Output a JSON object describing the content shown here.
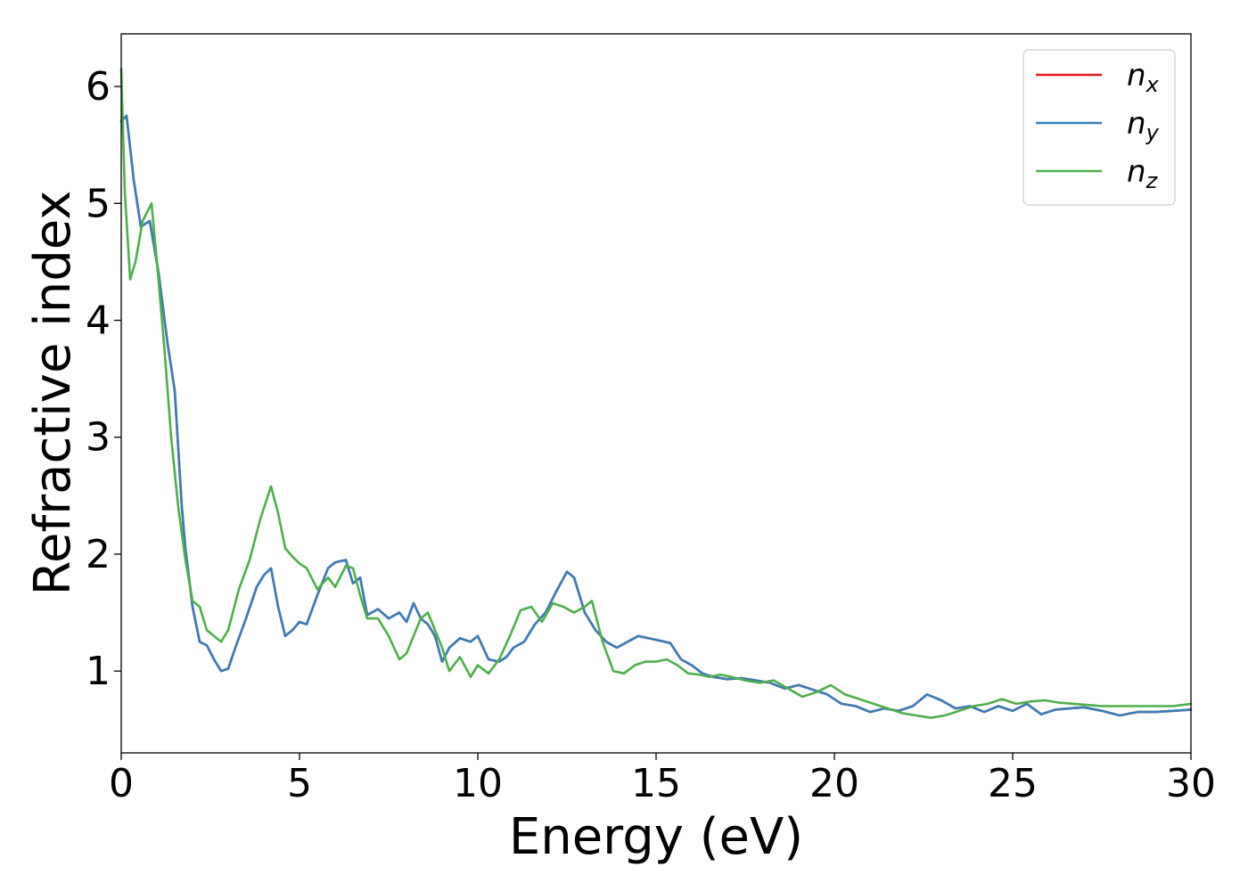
{
  "chart_data": {
    "type": "line",
    "xlabel": "Energy (eV)",
    "ylabel": "Refractive index",
    "xlim": [
      0,
      30
    ],
    "ylim": [
      0.3,
      6.45
    ],
    "xticks": [
      {
        "value": 0,
        "label": "0"
      },
      {
        "value": 5,
        "label": "5"
      },
      {
        "value": 10,
        "label": "10"
      },
      {
        "value": 15,
        "label": "15"
      },
      {
        "value": 20,
        "label": "20"
      },
      {
        "value": 25,
        "label": "25"
      },
      {
        "value": 30,
        "label": "30"
      }
    ],
    "yticks": [
      {
        "value": 1,
        "label": "1"
      },
      {
        "value": 2,
        "label": "2"
      },
      {
        "value": 3,
        "label": "3"
      },
      {
        "value": 4,
        "label": "4"
      },
      {
        "value": 5,
        "label": "5"
      },
      {
        "value": 6,
        "label": "6"
      }
    ],
    "grid": false,
    "legend_position": "top-right",
    "series": [
      {
        "key": "nx",
        "base": "n",
        "sub": "x",
        "color": "#e41a1c",
        "x": [
          0,
          0.15,
          0.35,
          0.55,
          0.8,
          1.05,
          1.3,
          1.5,
          1.6,
          1.7,
          1.8,
          1.9,
          2.0,
          2.2,
          2.4,
          2.6,
          2.8,
          3.0,
          3.2,
          3.5,
          3.8,
          4.0,
          4.2,
          4.4,
          4.6,
          4.8,
          5.0,
          5.2,
          5.5,
          5.8,
          6.0,
          6.3,
          6.5,
          6.7,
          6.9,
          7.2,
          7.5,
          7.8,
          8.0,
          8.2,
          8.4,
          8.6,
          8.8,
          9.0,
          9.2,
          9.5,
          9.8,
          10.0,
          10.3,
          10.6,
          10.8,
          11.0,
          11.3,
          11.6,
          11.9,
          12.2,
          12.5,
          12.7,
          13.0,
          13.3,
          13.6,
          13.9,
          14.2,
          14.5,
          14.8,
          15.1,
          15.4,
          15.7,
          16.0,
          16.3,
          16.6,
          17.0,
          17.4,
          17.8,
          18.2,
          18.6,
          19.0,
          19.4,
          19.8,
          20.2,
          20.6,
          21.0,
          21.4,
          21.8,
          22.2,
          22.6,
          23.0,
          23.4,
          23.8,
          24.2,
          24.6,
          25.0,
          25.4,
          25.8,
          26.2,
          26.6,
          27.0,
          27.5,
          28.0,
          28.5,
          29.0,
          29.5,
          30.0
        ],
        "y": [
          5.7,
          5.75,
          5.2,
          4.8,
          4.85,
          4.4,
          3.8,
          3.4,
          2.9,
          2.4,
          2.05,
          1.8,
          1.55,
          1.25,
          1.22,
          1.1,
          1.0,
          1.02,
          1.2,
          1.45,
          1.72,
          1.82,
          1.88,
          1.55,
          1.3,
          1.35,
          1.42,
          1.4,
          1.65,
          1.88,
          1.93,
          1.95,
          1.75,
          1.8,
          1.48,
          1.53,
          1.45,
          1.5,
          1.42,
          1.58,
          1.45,
          1.4,
          1.3,
          1.08,
          1.2,
          1.28,
          1.25,
          1.3,
          1.1,
          1.08,
          1.12,
          1.2,
          1.25,
          1.4,
          1.5,
          1.68,
          1.85,
          1.8,
          1.5,
          1.35,
          1.25,
          1.2,
          1.25,
          1.3,
          1.28,
          1.26,
          1.24,
          1.1,
          1.05,
          0.98,
          0.95,
          0.93,
          0.94,
          0.92,
          0.9,
          0.85,
          0.88,
          0.84,
          0.8,
          0.72,
          0.7,
          0.65,
          0.68,
          0.66,
          0.7,
          0.8,
          0.75,
          0.68,
          0.7,
          0.65,
          0.7,
          0.66,
          0.72,
          0.63,
          0.67,
          0.68,
          0.69,
          0.66,
          0.62,
          0.65,
          0.65,
          0.66,
          0.67
        ]
      },
      {
        "key": "ny",
        "base": "n",
        "sub": "y",
        "color": "#377eb8",
        "x": [
          0,
          0.15,
          0.35,
          0.55,
          0.8,
          1.05,
          1.3,
          1.5,
          1.6,
          1.7,
          1.8,
          1.9,
          2.0,
          2.2,
          2.4,
          2.6,
          2.8,
          3.0,
          3.2,
          3.5,
          3.8,
          4.0,
          4.2,
          4.4,
          4.6,
          4.8,
          5.0,
          5.2,
          5.5,
          5.8,
          6.0,
          6.3,
          6.5,
          6.7,
          6.9,
          7.2,
          7.5,
          7.8,
          8.0,
          8.2,
          8.4,
          8.6,
          8.8,
          9.0,
          9.2,
          9.5,
          9.8,
          10.0,
          10.3,
          10.6,
          10.8,
          11.0,
          11.3,
          11.6,
          11.9,
          12.2,
          12.5,
          12.7,
          13.0,
          13.3,
          13.6,
          13.9,
          14.2,
          14.5,
          14.8,
          15.1,
          15.4,
          15.7,
          16.0,
          16.3,
          16.6,
          17.0,
          17.4,
          17.8,
          18.2,
          18.6,
          19.0,
          19.4,
          19.8,
          20.2,
          20.6,
          21.0,
          21.4,
          21.8,
          22.2,
          22.6,
          23.0,
          23.4,
          23.8,
          24.2,
          24.6,
          25.0,
          25.4,
          25.8,
          26.2,
          26.6,
          27.0,
          27.5,
          28.0,
          28.5,
          29.0,
          29.5,
          30.0
        ],
        "y": [
          5.7,
          5.75,
          5.2,
          4.8,
          4.85,
          4.4,
          3.8,
          3.4,
          2.9,
          2.4,
          2.05,
          1.8,
          1.55,
          1.25,
          1.22,
          1.1,
          1.0,
          1.02,
          1.2,
          1.45,
          1.72,
          1.82,
          1.88,
          1.55,
          1.3,
          1.35,
          1.42,
          1.4,
          1.65,
          1.88,
          1.93,
          1.95,
          1.75,
          1.8,
          1.48,
          1.53,
          1.45,
          1.5,
          1.42,
          1.58,
          1.45,
          1.4,
          1.3,
          1.08,
          1.2,
          1.28,
          1.25,
          1.3,
          1.1,
          1.08,
          1.12,
          1.2,
          1.25,
          1.4,
          1.5,
          1.68,
          1.85,
          1.8,
          1.5,
          1.35,
          1.25,
          1.2,
          1.25,
          1.3,
          1.28,
          1.26,
          1.24,
          1.1,
          1.05,
          0.98,
          0.95,
          0.93,
          0.94,
          0.92,
          0.9,
          0.85,
          0.88,
          0.84,
          0.8,
          0.72,
          0.7,
          0.65,
          0.68,
          0.66,
          0.7,
          0.8,
          0.75,
          0.68,
          0.7,
          0.65,
          0.7,
          0.66,
          0.72,
          0.63,
          0.67,
          0.68,
          0.69,
          0.66,
          0.62,
          0.65,
          0.65,
          0.66,
          0.67
        ]
      },
      {
        "key": "nz",
        "base": "n",
        "sub": "z",
        "color": "#4daf4a",
        "x": [
          0,
          0.1,
          0.25,
          0.4,
          0.6,
          0.85,
          1.0,
          1.2,
          1.4,
          1.6,
          1.8,
          2.0,
          2.2,
          2.4,
          2.6,
          2.8,
          3.0,
          3.3,
          3.6,
          3.9,
          4.2,
          4.4,
          4.6,
          4.8,
          5.0,
          5.2,
          5.5,
          5.8,
          6.0,
          6.3,
          6.5,
          6.7,
          6.9,
          7.2,
          7.5,
          7.8,
          8.0,
          8.2,
          8.4,
          8.6,
          8.8,
          9.0,
          9.2,
          9.5,
          9.8,
          10.0,
          10.3,
          10.6,
          10.9,
          11.2,
          11.5,
          11.8,
          12.1,
          12.4,
          12.7,
          13.0,
          13.2,
          13.5,
          13.8,
          14.1,
          14.4,
          14.7,
          15.0,
          15.3,
          15.6,
          15.9,
          16.2,
          16.5,
          16.8,
          17.1,
          17.5,
          17.9,
          18.3,
          18.7,
          19.1,
          19.5,
          19.9,
          20.3,
          20.7,
          21.1,
          21.5,
          21.9,
          22.3,
          22.7,
          23.1,
          23.5,
          23.9,
          24.3,
          24.7,
          25.1,
          25.5,
          25.9,
          26.3,
          26.7,
          27.1,
          27.5,
          28.0,
          28.5,
          29.0,
          29.5,
          30.0
        ],
        "y": [
          6.15,
          5.1,
          4.35,
          4.5,
          4.85,
          5.0,
          4.5,
          3.8,
          3.0,
          2.4,
          1.95,
          1.6,
          1.55,
          1.35,
          1.3,
          1.25,
          1.35,
          1.7,
          1.95,
          2.3,
          2.58,
          2.35,
          2.05,
          1.98,
          1.92,
          1.88,
          1.7,
          1.8,
          1.72,
          1.9,
          1.88,
          1.65,
          1.45,
          1.45,
          1.3,
          1.1,
          1.15,
          1.3,
          1.45,
          1.5,
          1.35,
          1.2,
          1.0,
          1.12,
          0.95,
          1.05,
          0.98,
          1.1,
          1.3,
          1.52,
          1.55,
          1.42,
          1.58,
          1.55,
          1.5,
          1.55,
          1.6,
          1.25,
          1.0,
          0.98,
          1.05,
          1.08,
          1.08,
          1.1,
          1.05,
          0.98,
          0.97,
          0.95,
          0.97,
          0.95,
          0.92,
          0.9,
          0.92,
          0.85,
          0.78,
          0.82,
          0.88,
          0.8,
          0.76,
          0.72,
          0.68,
          0.64,
          0.62,
          0.6,
          0.62,
          0.66,
          0.7,
          0.72,
          0.76,
          0.72,
          0.74,
          0.75,
          0.73,
          0.72,
          0.71,
          0.7,
          0.7,
          0.7,
          0.7,
          0.7,
          0.72
        ]
      }
    ]
  }
}
